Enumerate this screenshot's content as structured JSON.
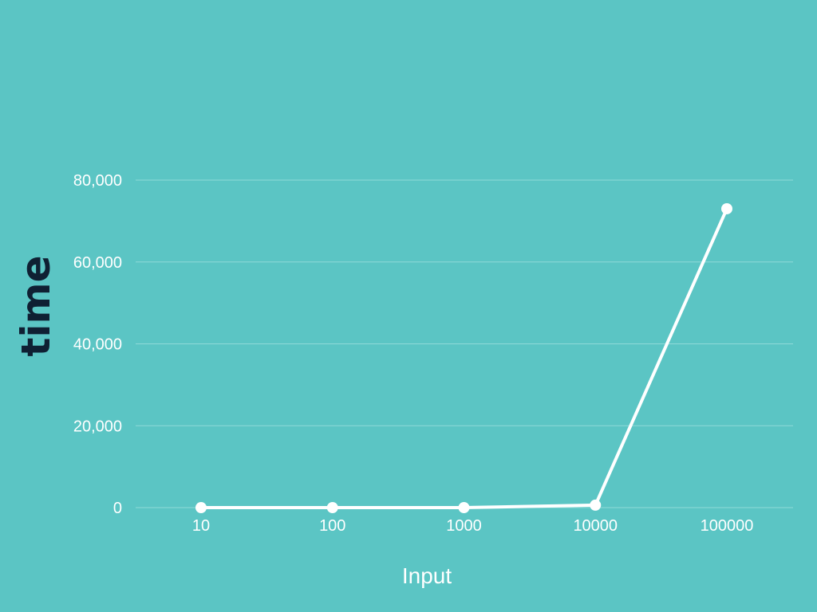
{
  "chart_data": {
    "type": "line",
    "categories": [
      "10",
      "100",
      "1000",
      "10000",
      "100000"
    ],
    "series": [
      {
        "values": [
          0,
          0,
          0,
          600,
          73000
        ]
      }
    ],
    "xlabel": "Input",
    "ylabel": "time",
    "ylim": [
      0,
      80000
    ],
    "yticks": [
      "0",
      "20,000",
      "40,000",
      "60,000",
      "80,000"
    ],
    "grid": true,
    "legend": "none"
  },
  "colors": {
    "background": "#5bc5c4",
    "line": "#ffffff",
    "grid": "#8fdad8",
    "tick_text": "#ffffff",
    "ylabel_text": "#0f2033"
  }
}
